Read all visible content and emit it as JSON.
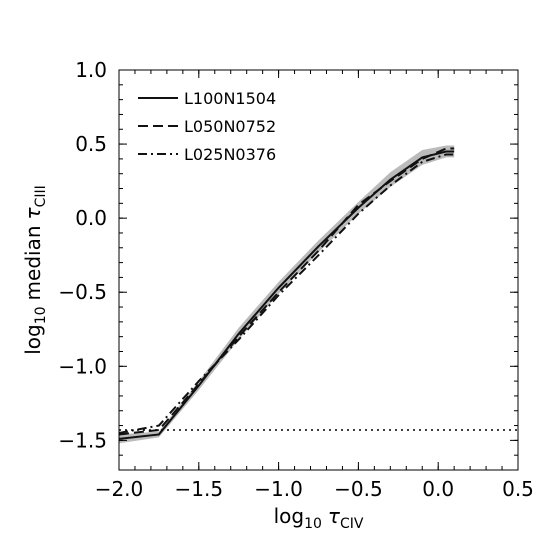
{
  "chart_data": {
    "type": "line",
    "xlabel": {
      "base": "log",
      "sub": "10",
      "tau": "τ",
      "species": "CIV"
    },
    "ylabel": {
      "base": "log",
      "sub": "10",
      "word": "median",
      "tau": "τ",
      "species": "CIII"
    },
    "xlim": [
      -2.0,
      0.5
    ],
    "ylim": [
      -1.7,
      1.0
    ],
    "xticks": [
      -2.0,
      -1.5,
      -1.0,
      -0.5,
      0.0,
      0.5
    ],
    "xtick_labels": [
      "−2.0",
      "−1.5",
      "−1.0",
      "−0.5",
      "0.0",
      "0.5"
    ],
    "yticks": [
      -1.5,
      -1.0,
      -0.5,
      0.0,
      0.5,
      1.0
    ],
    "ytick_labels": [
      "−1.5",
      "−1.0",
      "−0.5",
      "0.0",
      "0.5",
      "1.0"
    ],
    "legend_position": "top-left",
    "series": [
      {
        "name": "L100N1504",
        "style": "solid",
        "x": [
          -2.0,
          -1.75,
          -1.5,
          -1.25,
          -1.0,
          -0.75,
          -0.5,
          -0.3,
          -0.1,
          0.05,
          0.1
        ],
        "y": [
          -1.49,
          -1.46,
          -1.13,
          -0.78,
          -0.47,
          -0.19,
          0.07,
          0.26,
          0.41,
          0.45,
          0.45
        ],
        "band": [
          0.03,
          0.02,
          0.03,
          0.04,
          0.04,
          0.04,
          0.04,
          0.05,
          0.05,
          0.04,
          0.04
        ]
      },
      {
        "name": "L050N0752",
        "style": "dashed",
        "x": [
          -2.0,
          -1.75,
          -1.5,
          -1.25,
          -1.0,
          -0.75,
          -0.5,
          -0.3,
          -0.1,
          0.05,
          0.1
        ],
        "y": [
          -1.46,
          -1.43,
          -1.12,
          -0.8,
          -0.5,
          -0.22,
          0.09,
          0.25,
          0.4,
          0.47,
          0.47
        ]
      },
      {
        "name": "L025N0376",
        "style": "dashdot",
        "x": [
          -2.0,
          -1.75,
          -1.5,
          -1.25,
          -1.0,
          -0.75,
          -0.5,
          -0.3,
          -0.1,
          0.05,
          0.1
        ],
        "y": [
          -1.45,
          -1.4,
          -1.1,
          -0.82,
          -0.52,
          -0.25,
          0.03,
          0.22,
          0.38,
          0.43,
          0.43
        ]
      }
    ],
    "hline": {
      "y": -1.43,
      "style": "dotted"
    },
    "colors": {
      "line": "#111111",
      "band": "#bbbbbb"
    }
  }
}
